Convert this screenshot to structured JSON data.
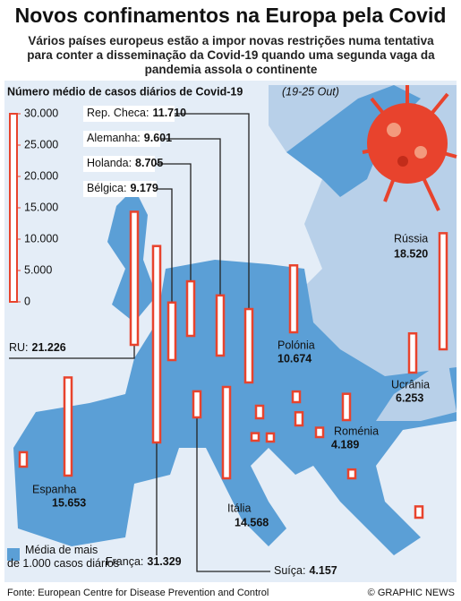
{
  "chart_data": {
    "type": "bar",
    "title": "Novos confinamentos na Europa pela Covid",
    "subtitle": "Vários países europeus estão a impor novas restrições numa tentativa para conter a disseminação da Covid-19 quando uma segunda vaga da pandemia assola o continente",
    "chart_title": "Número médio de casos diários de Covid-19",
    "period": "(19-25 Out)",
    "ylim": [
      0,
      30000
    ],
    "yticks": [
      {
        "value": 30000,
        "label": "30.000"
      },
      {
        "value": 25000,
        "label": "25.000"
      },
      {
        "value": 20000,
        "label": "20.000"
      },
      {
        "value": 15000,
        "label": "15.000"
      },
      {
        "value": 10000,
        "label": "10.000"
      },
      {
        "value": 5000,
        "label": "5.000"
      },
      0
    ],
    "categories": [
      "Rep. Checa:",
      "Alemanha:",
      "Holanda:",
      "Bélgica:",
      "RU:",
      "França:",
      "Espanha",
      "Suíça:",
      "Itália",
      "Polónia",
      "Rússia",
      "Ucrânia",
      "Roménia",
      null,
      null,
      null,
      null,
      null,
      null,
      null,
      null,
      null
    ],
    "values": [
      11710,
      9601,
      8705,
      9179,
      21226,
      31329,
      15653,
      4157,
      14568,
      10674,
      18520,
      6253,
      4189,
      2300,
      2000,
      1700,
      2100,
      1300,
      1200,
      1500,
      1400,
      1800
    ],
    "value_labels": [
      "11.710",
      "9.601",
      "8.705",
      "9.179",
      "21.226",
      "31.329",
      "15.653",
      "4.157",
      "14.568",
      "10.674",
      "18.520",
      "6.253",
      "4.189",
      null,
      null,
      null,
      null,
      null,
      null,
      null,
      null,
      null
    ],
    "color": "#e8432d",
    "legend": "Média de mais de 1.000 casos diários",
    "legend_color": "#5b9fd6",
    "source": "Fonte: European Centre for Disease Prevention and Control",
    "credit": "© GRAPHIC NEWS"
  }
}
